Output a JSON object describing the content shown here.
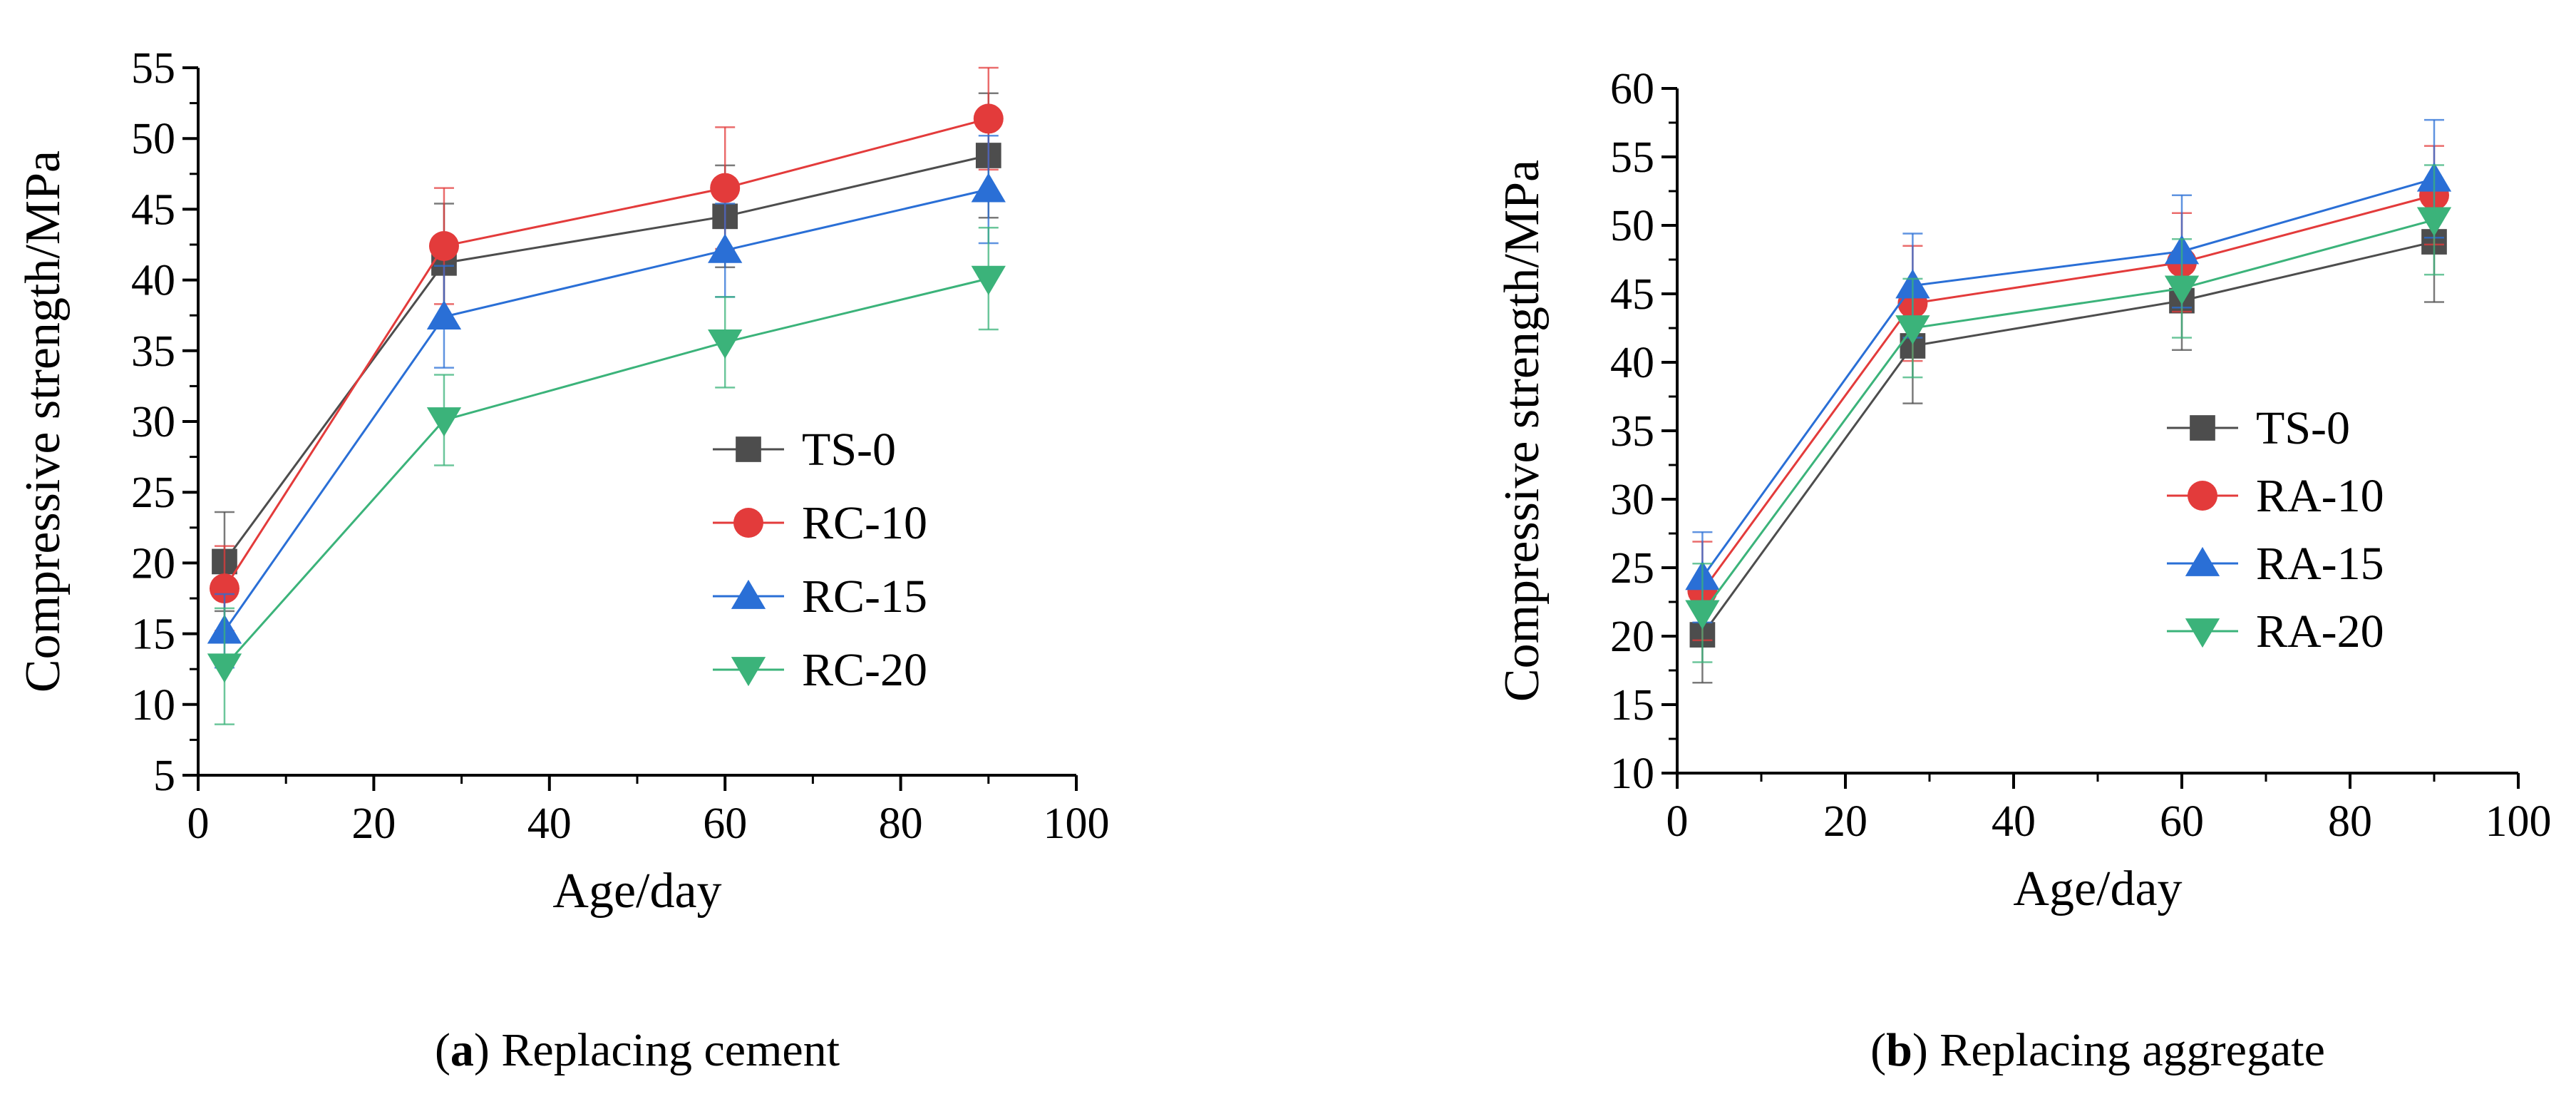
{
  "chart_data": [
    {
      "type": "line",
      "panel": "a",
      "xlabel": "Age/day",
      "ylabel": "Compressive strength/MPa",
      "xlim": [
        0,
        100
      ],
      "ylim": [
        5,
        55
      ],
      "x_ticks": [
        "0",
        "20",
        "40",
        "60",
        "80",
        "100"
      ],
      "y_ticks": [
        "5",
        "10",
        "15",
        "20",
        "25",
        "30",
        "35",
        "40",
        "45",
        "50",
        "55"
      ],
      "x": [
        3,
        28,
        60,
        90
      ],
      "series": [
        {
          "name": "TS-0",
          "color": "#4d4d4d",
          "marker": "square",
          "values": [
            20.1,
            41.2,
            44.5,
            48.8
          ],
          "errors": [
            3.5,
            4.2,
            3.6,
            4.4
          ]
        },
        {
          "name": "RC-10",
          "color": "#e33b3b",
          "marker": "circle",
          "values": [
            18.2,
            42.4,
            46.5,
            51.4
          ],
          "errors": [
            3.0,
            4.1,
            4.3,
            3.6
          ]
        },
        {
          "name": "RC-15",
          "color": "#2a6fd6",
          "marker": "triangle-up",
          "values": [
            15.2,
            37.4,
            42.1,
            46.4
          ],
          "errors": [
            2.6,
            3.6,
            3.3,
            3.8
          ]
        },
        {
          "name": "RC-20",
          "color": "#3bb37a",
          "marker": "triangle-down",
          "values": [
            12.7,
            30.1,
            35.6,
            40.1
          ],
          "errors": [
            4.1,
            3.2,
            3.2,
            3.6
          ]
        }
      ],
      "caption_label": "a",
      "caption_text": "Replacing cement"
    },
    {
      "type": "line",
      "panel": "b",
      "xlabel": "Age/day",
      "ylabel": "Compressive strength/MPa",
      "xlim": [
        0,
        100
      ],
      "ylim": [
        10,
        60
      ],
      "x_ticks": [
        "0",
        "20",
        "40",
        "60",
        "80",
        "100"
      ],
      "y_ticks": [
        "10",
        "15",
        "20",
        "25",
        "30",
        "35",
        "40",
        "45",
        "50",
        "55",
        "60"
      ],
      "x": [
        3,
        28,
        60,
        90
      ],
      "series": [
        {
          "name": "TS-0",
          "color": "#4d4d4d",
          "marker": "square",
          "values": [
            20.1,
            41.2,
            44.5,
            48.8
          ],
          "errors": [
            3.5,
            4.2,
            3.6,
            4.4
          ]
        },
        {
          "name": "RA-10",
          "color": "#e33b3b",
          "marker": "circle",
          "values": [
            23.3,
            44.3,
            47.3,
            52.2
          ],
          "errors": [
            3.6,
            4.2,
            3.6,
            3.6
          ]
        },
        {
          "name": "RA-15",
          "color": "#2a6fd6",
          "marker": "triangle-up",
          "values": [
            24.3,
            45.6,
            48.1,
            53.4
          ],
          "errors": [
            3.3,
            3.8,
            4.1,
            4.3
          ]
        },
        {
          "name": "RA-20",
          "color": "#3bb37a",
          "marker": "triangle-down",
          "values": [
            21.7,
            42.5,
            45.4,
            50.4
          ],
          "errors": [
            3.6,
            3.6,
            3.6,
            4.0
          ]
        }
      ],
      "caption_label": "b",
      "caption_text": "Replacing aggregate"
    }
  ],
  "captions": [
    {
      "label": "a",
      "text": "Replacing cement"
    },
    {
      "label": "b",
      "text": "Replacing aggregate"
    }
  ]
}
